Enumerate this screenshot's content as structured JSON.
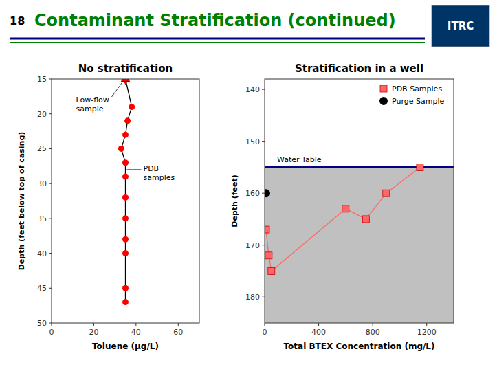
{
  "title": "Contaminant Stratification (continued)",
  "title_color": "#008000",
  "slide_number": "18",
  "logo_text": "ITRC",
  "header_line_colors": [
    "#000080",
    "#008000"
  ],
  "chart_data": [
    {
      "type": "line",
      "title": "No stratification",
      "x_label": "Toluene (μg/L)",
      "y_label": "Depth (feet below top of casing)",
      "xlim": [
        0,
        70
      ],
      "ylim": [
        50,
        15
      ],
      "xticks": [
        0,
        20,
        40,
        60
      ],
      "yticks": [
        15,
        20,
        25,
        30,
        35,
        40,
        45,
        50
      ],
      "grid": false,
      "series": [
        {
          "type": "line",
          "color": "#000000",
          "marker": "none",
          "x": [
            35,
            38,
            36,
            35,
            33,
            35,
            35,
            35,
            35,
            35,
            35,
            35,
            35
          ],
          "values": [
            15,
            19,
            21,
            23,
            25,
            27,
            29,
            32,
            35,
            38,
            40,
            45,
            47
          ]
        },
        {
          "type": "scatter",
          "color": "#ff0000",
          "marker": "circle",
          "x": [
            38,
            36,
            35,
            33,
            35,
            35,
            35,
            35,
            35,
            35,
            35,
            35
          ],
          "values": [
            19,
            21,
            23,
            25,
            27,
            29,
            32,
            35,
            38,
            40,
            45,
            47
          ]
        },
        {
          "type": "scatter",
          "color": "#0000ff",
          "marker": "star",
          "x": [
            35
          ],
          "values": [
            15
          ]
        }
      ],
      "annotations": [
        {
          "text": "Low-flow\nsample"
        },
        {
          "text": "PDB\nsamples"
        }
      ]
    },
    {
      "type": "line",
      "title": "Stratification in a well",
      "x_label": "Total BTEX Concentration (mg/L)",
      "y_label": "Depth (feet)",
      "xlim": [
        0,
        1400
      ],
      "ylim": [
        185,
        138
      ],
      "xticks": [
        0,
        400,
        800,
        1200
      ],
      "yticks": [
        140,
        150,
        160,
        170,
        180
      ],
      "grid": false,
      "legend": "upper right",
      "water_table": {
        "value": 155,
        "label": "Water Table",
        "color": "#000080",
        "fill_color": "#c0c0c0"
      },
      "series": [
        {
          "name": "PDB Samples",
          "type": "line",
          "color": "#ff6666",
          "marker": "square",
          "x": [
            10,
            30,
            50,
            600,
            750,
            900,
            1150
          ],
          "values": [
            167,
            172,
            175,
            163,
            165,
            160,
            155
          ]
        },
        {
          "name": "Purge Sample",
          "type": "scatter",
          "color": "#000000",
          "marker": "circle",
          "x": [
            10
          ],
          "values": [
            160
          ]
        }
      ]
    }
  ]
}
